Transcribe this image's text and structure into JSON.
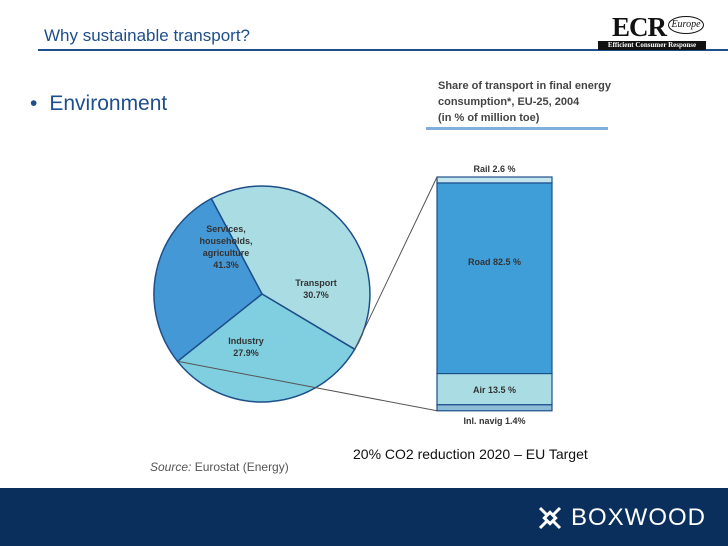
{
  "slide": {
    "title": "Why sustainable transport?",
    "bullet": "Environment"
  },
  "logo": {
    "main": "ECR",
    "europe": "Europe",
    "sub": "Efficient Consumer Response"
  },
  "footer": {
    "brand": "BOXWOOD"
  },
  "source": {
    "label": "Source:",
    "value": " Eurostat (Energy)"
  },
  "target_text": "20% CO2 reduction 2020 – EU Target",
  "colors": {
    "title_blue": "#1f4e8c",
    "services": "#a9dce3",
    "industry": "#4598d6",
    "transport": "#7fcfe0",
    "rail": "#c4e4ee",
    "road": "#3f9ed8",
    "air": "#a9dce3",
    "inl_navig": "#8dbcd6",
    "footer": "#0a2f5c"
  },
  "chart_data": [
    {
      "type": "pie",
      "title_lines": [
        "Share of transport in final energy",
        "consumption*, EU-25, 2004",
        "(in % of million toe)"
      ],
      "slices": [
        {
          "label_lines": [
            "Services,",
            "households,",
            "agriculture",
            "41.3%"
          ],
          "value": 41.3
        },
        {
          "label_lines": [
            "Transport",
            "30.7%"
          ],
          "value": 30.7
        },
        {
          "label_lines": [
            "Industry",
            "27.9%"
          ],
          "value": 27.9
        }
      ]
    },
    {
      "type": "bar",
      "stacked": true,
      "segments": [
        {
          "label": "Rail 2.6 %",
          "value": 2.6
        },
        {
          "label": "Road 82.5 %",
          "value": 82.5
        },
        {
          "label": "Air 13.5 %",
          "value": 13.5
        },
        {
          "label": "Inl. navig 1.4%",
          "value": 1.4
        }
      ]
    }
  ]
}
